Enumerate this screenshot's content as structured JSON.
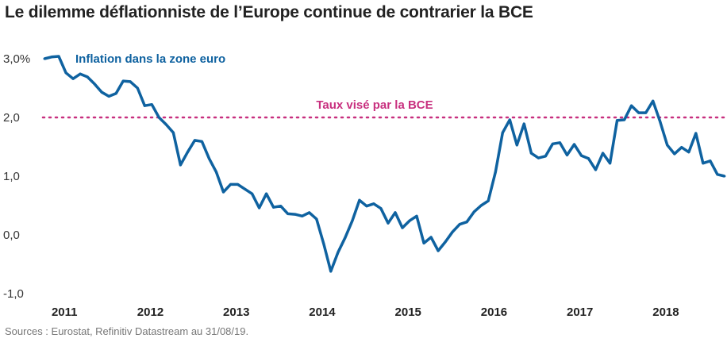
{
  "chart_data": {
    "type": "line",
    "title": "Le dilemme déflationniste de l’Europe continue de contrarier la BCE",
    "source": "Sources : Eurostat, Refinitiv Datastream au 31/08/19.",
    "xlabel": "",
    "ylabel": "",
    "ylim": [
      -1.0,
      3.0
    ],
    "y_ticks": [
      "3,0%",
      "2,0",
      "1,0",
      "0,0",
      "-1,0"
    ],
    "y_tick_values": [
      3,
      2,
      1,
      0,
      -1
    ],
    "x_ticks": [
      "2011",
      "2012",
      "2013",
      "2014",
      "2015",
      "2016",
      "2017",
      "2018"
    ],
    "x_start": "2011-01",
    "x_frequency": "monthly",
    "grid": false,
    "series": [
      {
        "name": "Inflation dans la zone euro",
        "color": "#0f62a0",
        "values": [
          3.0,
          3.03,
          3.04,
          2.76,
          2.66,
          2.74,
          2.69,
          2.57,
          2.43,
          2.36,
          2.41,
          2.62,
          2.61,
          2.5,
          2.2,
          2.22,
          2.0,
          1.88,
          1.74,
          1.19,
          1.41,
          1.61,
          1.59,
          1.3,
          1.07,
          0.73,
          0.86,
          0.86,
          0.78,
          0.7,
          0.46,
          0.7,
          0.47,
          0.49,
          0.36,
          0.35,
          0.32,
          0.38,
          0.27,
          -0.15,
          -0.62,
          -0.3,
          -0.05,
          0.24,
          0.59,
          0.49,
          0.53,
          0.45,
          0.2,
          0.38,
          0.12,
          0.24,
          0.32,
          -0.14,
          -0.04,
          -0.27,
          -0.12,
          0.05,
          0.18,
          0.22,
          0.39,
          0.5,
          0.58,
          1.07,
          1.74,
          1.96,
          1.53,
          1.89,
          1.39,
          1.31,
          1.34,
          1.55,
          1.57,
          1.36,
          1.54,
          1.35,
          1.3,
          1.11,
          1.39,
          1.22,
          1.95,
          1.96,
          2.2,
          2.08,
          2.08,
          2.28,
          1.93,
          1.53,
          1.38,
          1.49,
          1.41,
          1.73,
          1.22,
          1.26,
          1.03,
          1.0
        ]
      }
    ],
    "reference_line": {
      "label": "Taux visé par la BCE",
      "value": 2.0,
      "color": "#c8307f"
    }
  }
}
